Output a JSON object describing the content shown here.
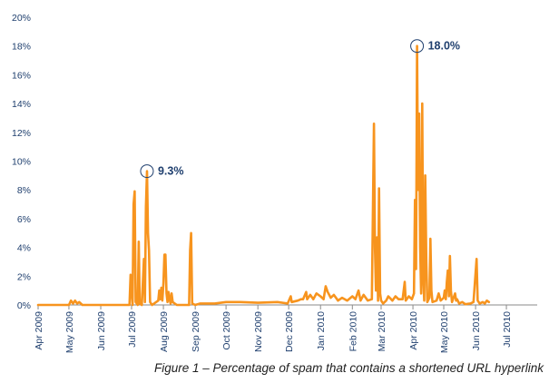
{
  "chart_data": {
    "type": "line",
    "title": "",
    "xlabel": "",
    "ylabel": "",
    "caption": "Figure 1 – Percentage of spam that contains a shortened URL hyperlink",
    "ylim": [
      0,
      20
    ],
    "y_ticks": [
      "0%",
      "2%",
      "4%",
      "6%",
      "8%",
      "10%",
      "12%",
      "14%",
      "16%",
      "18%",
      "20%"
    ],
    "xlim": [
      "2009-04-01",
      "2010-07-31"
    ],
    "x_ticks": [
      {
        "date": "2009-04-01",
        "label": "Apr 2009"
      },
      {
        "date": "2009-05-01",
        "label": "May 2009"
      },
      {
        "date": "2009-06-01",
        "label": "Jun 2009"
      },
      {
        "date": "2009-07-01",
        "label": "Jul 2009"
      },
      {
        "date": "2009-08-01",
        "label": "Aug 2009"
      },
      {
        "date": "2009-09-01",
        "label": "Sep 2009"
      },
      {
        "date": "2009-10-01",
        "label": "Oct 2009"
      },
      {
        "date": "2009-11-01",
        "label": "Nov 2009"
      },
      {
        "date": "2009-12-01",
        "label": "Dec 2009"
      },
      {
        "date": "2010-01-01",
        "label": "Jan 2010"
      },
      {
        "date": "2010-02-01",
        "label": "Feb 2010"
      },
      {
        "date": "2010-03-01",
        "label": "Mar 2010"
      },
      {
        "date": "2010-04-01",
        "label": "Apr 2010"
      },
      {
        "date": "2010-05-01",
        "label": "May 2010"
      },
      {
        "date": "2010-06-01",
        "label": "Jun 2010"
      },
      {
        "date": "2010-07-01",
        "label": "Jul 2010"
      }
    ],
    "grid": false,
    "series_color": "#f7941e",
    "axis_color": "#8a8a8a",
    "series": [
      {
        "points": [
          [
            "2009-04-01",
            0
          ],
          [
            "2009-04-14",
            0
          ],
          [
            "2009-05-01",
            0
          ],
          [
            "2009-05-03",
            0.3
          ],
          [
            "2009-05-05",
            0.1
          ],
          [
            "2009-05-07",
            0.3
          ],
          [
            "2009-05-09",
            0.1
          ],
          [
            "2009-05-11",
            0.2
          ],
          [
            "2009-05-14",
            0
          ],
          [
            "2009-06-01",
            0
          ],
          [
            "2009-06-29",
            0
          ],
          [
            "2009-06-30",
            2.1
          ],
          [
            "2009-07-01",
            1.0
          ],
          [
            "2009-07-02",
            0
          ],
          [
            "2009-07-03",
            7.0
          ],
          [
            "2009-07-04",
            7.9
          ],
          [
            "2009-07-05",
            0.2
          ],
          [
            "2009-07-07",
            0
          ],
          [
            "2009-07-08",
            4.4
          ],
          [
            "2009-07-09",
            0.1
          ],
          [
            "2009-07-11",
            0
          ],
          [
            "2009-07-13",
            3.2
          ],
          [
            "2009-07-14",
            0.2
          ],
          [
            "2009-07-15",
            6.8
          ],
          [
            "2009-07-16",
            9.3
          ],
          [
            "2009-07-17",
            5.0
          ],
          [
            "2009-07-18",
            3.8
          ],
          [
            "2009-07-19",
            0.2
          ],
          [
            "2009-07-21",
            0
          ],
          [
            "2009-07-27",
            0.3
          ],
          [
            "2009-07-28",
            1.0
          ],
          [
            "2009-07-29",
            0.4
          ],
          [
            "2009-07-30",
            1.2
          ],
          [
            "2009-07-31",
            0.3
          ],
          [
            "2009-08-01",
            1.5
          ],
          [
            "2009-08-02",
            3.5
          ],
          [
            "2009-08-03",
            3.5
          ],
          [
            "2009-08-04",
            0.8
          ],
          [
            "2009-08-05",
            0.2
          ],
          [
            "2009-08-06",
            0.9
          ],
          [
            "2009-08-07",
            0.4
          ],
          [
            "2009-08-08",
            0.1
          ],
          [
            "2009-08-09",
            0.8
          ],
          [
            "2009-08-10",
            0.2
          ],
          [
            "2009-08-14",
            0
          ],
          [
            "2009-08-26",
            0
          ],
          [
            "2009-08-27",
            3.8
          ],
          [
            "2009-08-28",
            5.0
          ],
          [
            "2009-08-29",
            0.1
          ],
          [
            "2009-09-01",
            0
          ],
          [
            "2009-09-06",
            0.1
          ],
          [
            "2009-09-20",
            0.1
          ],
          [
            "2009-10-01",
            0.2
          ],
          [
            "2009-10-15",
            0.2
          ],
          [
            "2009-11-01",
            0.15
          ],
          [
            "2009-11-20",
            0.2
          ],
          [
            "2009-11-30",
            0.1
          ],
          [
            "2009-12-03",
            0.6
          ],
          [
            "2009-12-04",
            0.2
          ],
          [
            "2009-12-10",
            0.3
          ],
          [
            "2009-12-13",
            0.4
          ],
          [
            "2009-12-15",
            0.4
          ],
          [
            "2009-12-18",
            0.9
          ],
          [
            "2009-12-19",
            0.4
          ],
          [
            "2009-12-22",
            0.7
          ],
          [
            "2009-12-25",
            0.4
          ],
          [
            "2009-12-28",
            0.8
          ],
          [
            "2010-01-01",
            0.6
          ],
          [
            "2010-01-04",
            0.4
          ],
          [
            "2010-01-06",
            1.3
          ],
          [
            "2010-01-08",
            0.9
          ],
          [
            "2010-01-11",
            0.5
          ],
          [
            "2010-01-14",
            0.7
          ],
          [
            "2010-01-18",
            0.3
          ],
          [
            "2010-01-22",
            0.5
          ],
          [
            "2010-01-27",
            0.3
          ],
          [
            "2010-02-01",
            0.6
          ],
          [
            "2010-02-04",
            0.4
          ],
          [
            "2010-02-07",
            1.0
          ],
          [
            "2010-02-09",
            0.3
          ],
          [
            "2010-02-12",
            0.7
          ],
          [
            "2010-02-16",
            0.3
          ],
          [
            "2010-02-20",
            0.4
          ],
          [
            "2010-02-22",
            12.6
          ],
          [
            "2010-02-23",
            4.0
          ],
          [
            "2010-02-24",
            1.0
          ],
          [
            "2010-02-25",
            4.7
          ],
          [
            "2010-02-26",
            0.3
          ],
          [
            "2010-02-27",
            8.1
          ],
          [
            "2010-02-28",
            0.8
          ],
          [
            "2010-03-01",
            0.3
          ],
          [
            "2010-03-03",
            0.1
          ],
          [
            "2010-03-06",
            0.3
          ],
          [
            "2010-03-08",
            0.6
          ],
          [
            "2010-03-12",
            0.3
          ],
          [
            "2010-03-15",
            0.6
          ],
          [
            "2010-03-18",
            0.4
          ],
          [
            "2010-03-22",
            0.4
          ],
          [
            "2010-03-24",
            1.6
          ],
          [
            "2010-03-25",
            0.3
          ],
          [
            "2010-03-28",
            0.6
          ],
          [
            "2010-03-31",
            0.4
          ],
          [
            "2010-04-02",
            0.8
          ],
          [
            "2010-04-03",
            7.3
          ],
          [
            "2010-04-04",
            2.5
          ],
          [
            "2010-04-05",
            18.0
          ],
          [
            "2010-04-06",
            8.0
          ],
          [
            "2010-04-07",
            13.3
          ],
          [
            "2010-04-08",
            4.0
          ],
          [
            "2010-04-09",
            0.8
          ],
          [
            "2010-04-10",
            14.0
          ],
          [
            "2010-04-11",
            2.0
          ],
          [
            "2010-04-12",
            0.3
          ],
          [
            "2010-04-13",
            9.0
          ],
          [
            "2010-04-14",
            3.0
          ],
          [
            "2010-04-15",
            0.2
          ],
          [
            "2010-04-17",
            0.5
          ],
          [
            "2010-04-18",
            4.6
          ],
          [
            "2010-04-19",
            1.0
          ],
          [
            "2010-04-20",
            0.2
          ],
          [
            "2010-04-24",
            0.3
          ],
          [
            "2010-04-26",
            0.8
          ],
          [
            "2010-04-28",
            0.3
          ],
          [
            "2010-05-01",
            0.5
          ],
          [
            "2010-05-02",
            1.0
          ],
          [
            "2010-05-03",
            0.4
          ],
          [
            "2010-05-04",
            1.6
          ],
          [
            "2010-05-05",
            2.4
          ],
          [
            "2010-05-06",
            0.6
          ],
          [
            "2010-05-07",
            3.4
          ],
          [
            "2010-05-08",
            1.0
          ],
          [
            "2010-05-09",
            0.2
          ],
          [
            "2010-05-12",
            0.8
          ],
          [
            "2010-05-13",
            0.3
          ],
          [
            "2010-05-14",
            0.4
          ],
          [
            "2010-05-16",
            0.1
          ],
          [
            "2010-05-19",
            0.2
          ],
          [
            "2010-05-22",
            0.05
          ],
          [
            "2010-05-27",
            0.1
          ],
          [
            "2010-05-30",
            0.2
          ],
          [
            "2010-06-02",
            3.2
          ],
          [
            "2010-06-03",
            0.3
          ],
          [
            "2010-06-05",
            0.1
          ],
          [
            "2010-06-08",
            0.2
          ],
          [
            "2010-06-10",
            0.1
          ],
          [
            "2010-06-12",
            0.3
          ],
          [
            "2010-06-14",
            0.2
          ]
        ]
      }
    ],
    "annotations": [
      {
        "date": "2009-07-16",
        "value": 9.3,
        "label": "9.3%"
      },
      {
        "date": "2010-04-05",
        "value": 18.0,
        "label": "18.0%"
      }
    ]
  }
}
